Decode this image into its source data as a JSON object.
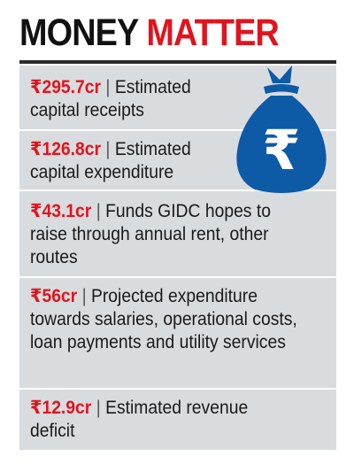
{
  "headline": {
    "word1": "MONEY",
    "word2": "MATTER"
  },
  "items": [
    {
      "amount": "₹295.7cr",
      "separator": "|",
      "text": "Estimated capital receipts"
    },
    {
      "amount": "₹126.8cr",
      "separator": "|",
      "text": "Estimated capital expenditure"
    },
    {
      "amount": "₹43.1cr",
      "separator": "|",
      "text": "Funds GIDC hopes to raise through annual rent, other routes"
    },
    {
      "amount": "₹56cr",
      "separator": "|",
      "text": "Projected expenditure towards salaries, operational costs, loan payments and utility services"
    },
    {
      "amount": "₹12.9cr",
      "separator": "|",
      "text": "Estimated revenue deficit"
    }
  ],
  "icon": {
    "name": "money-bag-rupee-icon",
    "symbol": "₹",
    "color": "#0d5aa7"
  },
  "colors": {
    "accent": "#e1141e",
    "row_grey": "#d9dcdf",
    "text": "#1a1a1a"
  }
}
